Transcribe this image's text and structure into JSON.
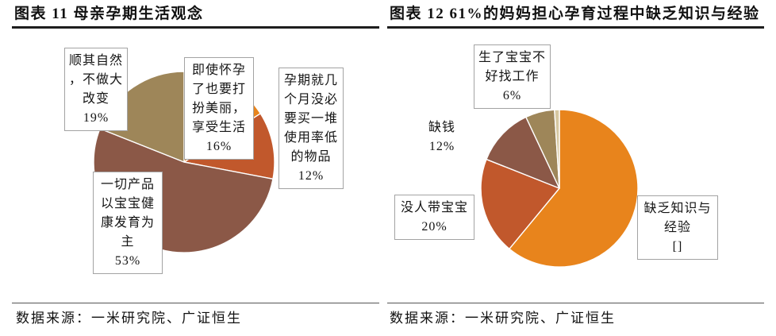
{
  "panels": [
    {
      "source": "数据来源：一米研究院、广证恒生"
    },
    {
      "source": "数据来源：一米研究院、广证恒生"
    }
  ],
  "chart_data": [
    {
      "type": "pie",
      "title": "图表 11 母亲孕期生活观念",
      "categories": [
        "即使怀孕了也要打扮美丽，享受生活",
        "孕期就几个月没必要买一堆使用率低的物品",
        "一切产品以宝宝健康发育为主",
        "顺其自然，不做大改变"
      ],
      "values": [
        16,
        12,
        53,
        19
      ],
      "data_labels": [
        "16%",
        "12%",
        "53%",
        "19%"
      ],
      "colors": [
        "#E8841C",
        "#C1582C",
        "#8B5847",
        "#9E8659"
      ],
      "legend": "none"
    },
    {
      "type": "pie",
      "title": "图表 12 61%的妈妈担心孕育过程中缺乏知识与经验",
      "categories": [
        "缺乏知识与经验",
        "没人带宝宝",
        "缺钱",
        "生了宝宝不好找工作",
        ""
      ],
      "values": [
        61,
        20,
        12,
        6,
        1
      ],
      "data_labels": [
        "[]",
        "20%",
        "12%",
        "6%",
        ""
      ],
      "colors": [
        "#E8841C",
        "#C1582C",
        "#8B5847",
        "#9E8659",
        "#D6C7A0"
      ],
      "legend": "none"
    }
  ]
}
